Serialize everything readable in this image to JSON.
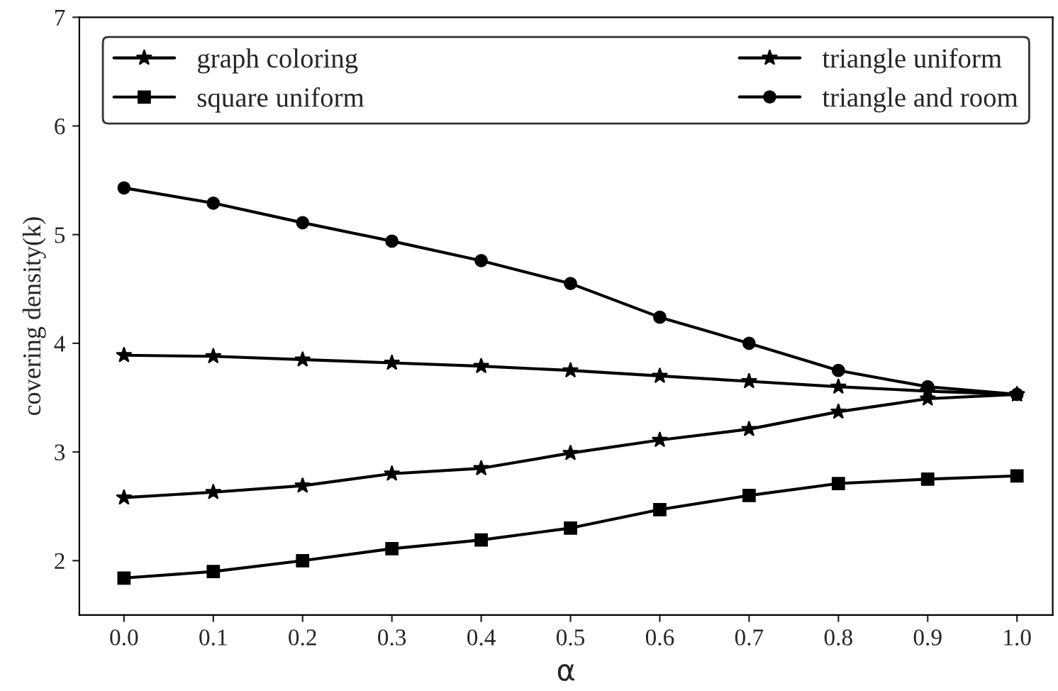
{
  "chart_data": {
    "type": "line",
    "xlabel": "α",
    "ylabel": "covering density(k)",
    "x": [
      0.0,
      0.1,
      0.2,
      0.3,
      0.4,
      0.5,
      0.6,
      0.7,
      0.8,
      0.9,
      1.0
    ],
    "series": [
      {
        "name": "graph coloring",
        "color": "#000000",
        "marker": "star",
        "values": [
          3.89,
          3.88,
          3.85,
          3.82,
          3.79,
          3.75,
          3.7,
          3.65,
          3.6,
          3.56,
          3.53
        ]
      },
      {
        "name": "square uniform",
        "color": "#000000",
        "marker": "square",
        "values": [
          1.84,
          1.9,
          2.0,
          2.11,
          2.19,
          2.3,
          2.47,
          2.6,
          2.71,
          2.75,
          2.78
        ]
      },
      {
        "name": "triangle uniform",
        "color": "#000000",
        "marker": "star",
        "values": [
          2.58,
          2.63,
          2.69,
          2.8,
          2.85,
          2.99,
          3.11,
          3.21,
          3.37,
          3.49,
          3.53
        ]
      },
      {
        "name": "triangle and room",
        "color": "#000000",
        "marker": "circle",
        "values": [
          5.43,
          5.29,
          5.11,
          4.94,
          4.76,
          4.55,
          4.24,
          4.0,
          3.75,
          3.6,
          3.53
        ]
      }
    ],
    "xlim": [
      -0.05,
      1.04
    ],
    "ylim": [
      1.5,
      7
    ],
    "xticks": [
      {
        "value": 0.0,
        "label": "0.0"
      },
      0.1,
      0.2,
      0.3,
      0.4,
      0.5,
      0.6,
      0.7,
      0.8,
      0.9,
      {
        "value": 1.0,
        "label": "1.0"
      }
    ],
    "yticks": [
      2,
      3,
      4,
      5,
      6,
      7
    ],
    "grid": false,
    "legend": "top",
    "line_style": "solid"
  }
}
